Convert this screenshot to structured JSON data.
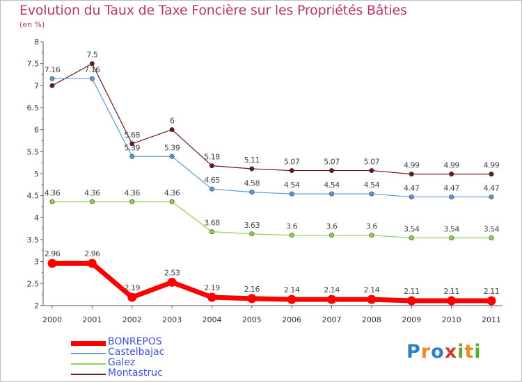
{
  "title": "Evolution du Taux de Taxe Foncière sur les Propriétés Bâties",
  "subtitle": "(en %)",
  "logo": {
    "text": "Proxiti",
    "letters": [
      "P",
      "r",
      "o",
      "x",
      "i",
      "t",
      "i"
    ],
    "colors": [
      "#2f7fc1",
      "#f08a1c",
      "#2f7fc1",
      "#d23a3a",
      "#5aa832",
      "#f08a1c",
      "#5aa832"
    ]
  },
  "chart_data": {
    "type": "line",
    "title": "Evolution du Taux de Taxe Foncière sur les Propriétés Bâties",
    "ylabel": "(en %)",
    "xlabel": "",
    "ylim": [
      2,
      8
    ],
    "yticks": [
      "2",
      "2.5",
      "3",
      "3.5",
      "4",
      "4.5",
      "5",
      "5.5",
      "6",
      "6.5",
      "7",
      "7.5",
      "8"
    ],
    "categories": [
      "2000",
      "2001",
      "2002",
      "2003",
      "2004",
      "2005",
      "2006",
      "2007",
      "2008",
      "2009",
      "2010",
      "2011"
    ],
    "legend_position": "bottom-left",
    "grid": false,
    "series": [
      {
        "name": "Montastruc",
        "color": "#6b1a1a",
        "values": [
          7.0,
          7.5,
          5.68,
          6.0,
          5.18,
          5.11,
          5.07,
          5.07,
          5.07,
          4.99,
          4.99,
          4.99
        ],
        "labels": [
          "",
          "7.5",
          "5.68",
          "6",
          "5.18",
          "5.11",
          "5.07",
          "5.07",
          "5.07",
          "4.99",
          "4.99",
          "4.99"
        ]
      },
      {
        "name": "Castelbajac",
        "color": "#5b9bd5",
        "values": [
          7.16,
          7.16,
          5.39,
          5.39,
          4.65,
          4.58,
          4.54,
          4.54,
          4.54,
          4.47,
          4.47,
          4.47
        ],
        "labels": [
          "7.16",
          "7.16",
          "5.39",
          "5.39",
          "4.65",
          "4.58",
          "4.54",
          "4.54",
          "4.54",
          "4.47",
          "4.47",
          "4.47"
        ]
      },
      {
        "name": "Galez",
        "color": "#92d050",
        "values": [
          4.36,
          4.36,
          4.36,
          4.36,
          3.68,
          3.63,
          3.6,
          3.6,
          3.6,
          3.54,
          3.54,
          3.54
        ],
        "labels": [
          "4.36",
          "4.36",
          "4.36",
          "4.36",
          "3.68",
          "3.63",
          "3.6",
          "3.6",
          "3.6",
          "3.54",
          "3.54",
          "3.54"
        ]
      },
      {
        "name": "BONREPOS",
        "color": "#ff0000",
        "values": [
          2.96,
          2.96,
          2.19,
          2.53,
          2.19,
          2.16,
          2.14,
          2.14,
          2.14,
          2.11,
          2.11,
          2.11
        ],
        "labels": [
          "2.96",
          "2.96",
          "2.19",
          "2.53",
          "2.19",
          "2.16",
          "2.14",
          "2.14",
          "2.14",
          "2.11",
          "2.11",
          "2.11"
        ]
      }
    ],
    "legend": [
      {
        "name": "BONREPOS",
        "color": "#ff0000",
        "text_color": "#3f51d9"
      },
      {
        "name": "Castelbajac",
        "color": "#5b9bd5",
        "text_color": "#3f51d9"
      },
      {
        "name": "Galez",
        "color": "#92d050",
        "text_color": "#3f51d9"
      },
      {
        "name": "Montastruc",
        "color": "#6b1a1a",
        "text_color": "#3f51d9"
      }
    ]
  }
}
